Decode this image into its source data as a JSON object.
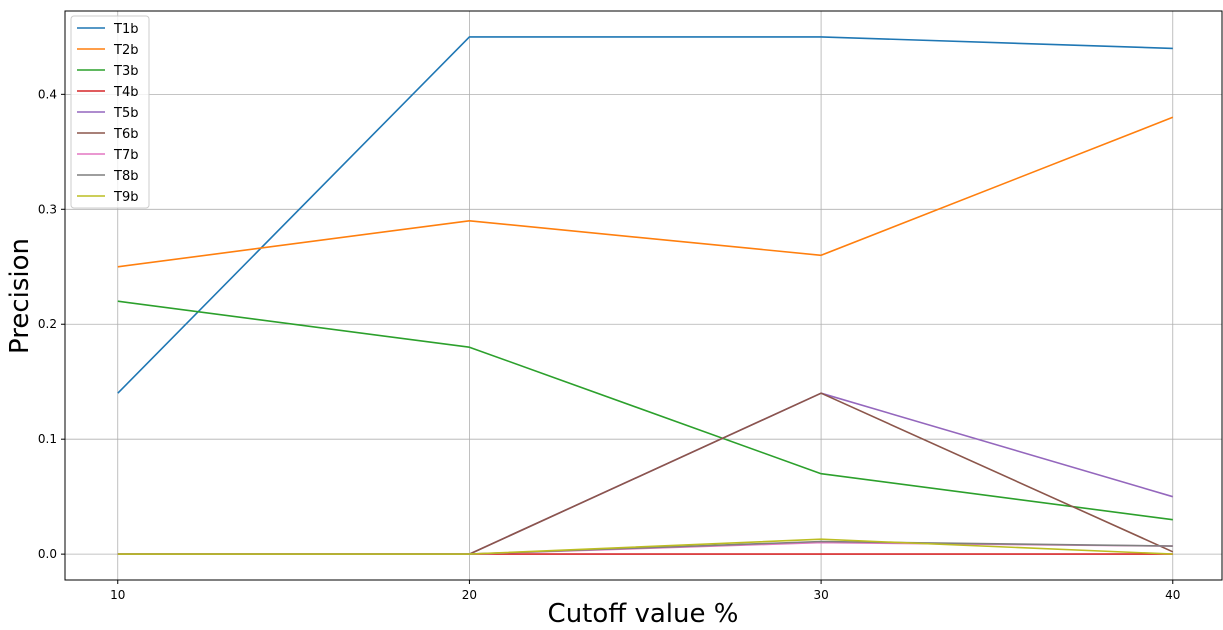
{
  "chart_data": {
    "type": "line",
    "xlabel": "Cutoff value %",
    "ylabel": "Precision",
    "x": [
      10,
      20,
      30,
      40
    ],
    "xticks": [
      "10",
      "20",
      "30",
      "40"
    ],
    "yticks": [
      "0.0",
      "0.1",
      "0.2",
      "0.3",
      "0.4"
    ],
    "xlim": [
      8.5,
      41.4
    ],
    "ylim": [
      -0.0225,
      0.4725
    ],
    "grid": true,
    "legend_position": "top-left",
    "series": [
      {
        "name": "T1b",
        "color": "#1f77b4",
        "values": [
          0.14,
          0.45,
          0.45,
          0.44
        ]
      },
      {
        "name": "T2b",
        "color": "#ff7f0e",
        "values": [
          0.25,
          0.29,
          0.26,
          0.38
        ]
      },
      {
        "name": "T3b",
        "color": "#2ca02c",
        "values": [
          0.22,
          0.18,
          0.07,
          0.03
        ]
      },
      {
        "name": "T4b",
        "color": "#d62728",
        "values": [
          0.0,
          0.0,
          0.0,
          0.0
        ]
      },
      {
        "name": "T5b",
        "color": "#9467bd",
        "values": [
          0.0,
          0.0,
          0.14,
          0.05
        ]
      },
      {
        "name": "T6b",
        "color": "#8c564b",
        "values": [
          0.0,
          0.0,
          0.14,
          0.002
        ]
      },
      {
        "name": "T7b",
        "color": "#e377c2",
        "values": [
          0.0,
          0.0,
          0.01,
          0.007
        ]
      },
      {
        "name": "T8b",
        "color": "#7f7f7f",
        "values": [
          0.0,
          0.0,
          0.011,
          0.007
        ]
      },
      {
        "name": "T9b",
        "color": "#bcbd22",
        "values": [
          0.0,
          0.0,
          0.013,
          0.0
        ]
      }
    ]
  }
}
